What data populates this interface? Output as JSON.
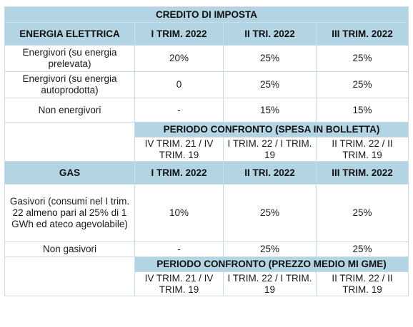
{
  "table": {
    "title": "CREDITO DI IMPOSTA",
    "energia": {
      "section_label": "ENERGIA ELETTRICA",
      "columns": [
        "I TRIM. 2022",
        "II TRI. 2022",
        "III TRIM. 2022"
      ],
      "rows": [
        {
          "label": "Energivori (su energia prelevata)",
          "values": [
            "20%",
            "25%",
            "25%"
          ]
        },
        {
          "label": "Energivori (su energia autoprodotta)",
          "values": [
            "0",
            "25%",
            "25%"
          ]
        },
        {
          "label": "Non energivori",
          "values": [
            "-",
            "15%",
            "15%"
          ]
        }
      ],
      "periodo_title": "PERIODO CONFRONTO (SPESA IN BOLLETTA)",
      "periodo_values": [
        "IV TRIM. 21 / IV TRIM. 19",
        "I TRIM. 22 / I TRIM. 19",
        "II TRIM. 22 / II TRIM. 19"
      ]
    },
    "gas": {
      "section_label": "GAS",
      "columns": [
        "I TRIM. 2022",
        "II TRI. 2022",
        "III TRIM. 2022"
      ],
      "rows": [
        {
          "label": "Gasivori (consumi nel I trim. 22 almeno pari al 25% di 1 GWh ed ateco agevolabile)",
          "values": [
            "10%",
            "25%",
            "25%"
          ]
        },
        {
          "label": "Non gasivori",
          "values": [
            "-",
            "25%",
            "25%"
          ]
        }
      ],
      "periodo_title": "PERIODO CONFRONTO (PREZZO MEDIO MI GME)",
      "periodo_values": [
        "IV TRIM. 21 / IV TRIM. 19",
        "I TRIM. 22 / I TRIM. 19",
        "II TRIM. 22 / II TRIM. 19"
      ]
    }
  }
}
